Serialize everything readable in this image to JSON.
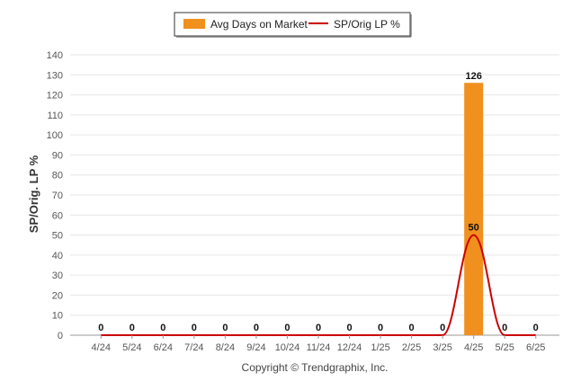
{
  "chart_data": {
    "type": "bar",
    "categories": [
      "4/24",
      "5/24",
      "6/24",
      "7/24",
      "8/24",
      "9/24",
      "10/24",
      "11/24",
      "12/24",
      "1/25",
      "2/25",
      "3/25",
      "4/25",
      "5/25",
      "6/25"
    ],
    "series": [
      {
        "name": "Avg Days on Market",
        "type": "bar",
        "color": "#f0901e",
        "values": [
          0,
          0,
          0,
          0,
          0,
          0,
          0,
          0,
          0,
          0,
          0,
          0,
          126,
          0,
          0
        ]
      },
      {
        "name": "SP/Orig LP %",
        "type": "line",
        "color": "#cc0000",
        "values": [
          0,
          0,
          0,
          0,
          0,
          0,
          0,
          0,
          0,
          0,
          0,
          0,
          50,
          0,
          0
        ]
      }
    ],
    "ylabel": "SP/Orig. LP %",
    "ylim": [
      0,
      140
    ],
    "yticks": [
      0,
      10,
      20,
      30,
      40,
      50,
      60,
      70,
      80,
      90,
      100,
      110,
      120,
      130,
      140
    ],
    "grid": true,
    "legend_position": "top-center",
    "data_labels": [
      "0",
      "0",
      "0",
      "0",
      "0",
      "0",
      "0",
      "0",
      "0",
      "0",
      "0",
      "0",
      "126",
      "0",
      "0"
    ],
    "line_data_labels": [
      "50"
    ]
  },
  "footer": {
    "copyright": "Copyright © Trendgraphix, Inc."
  }
}
